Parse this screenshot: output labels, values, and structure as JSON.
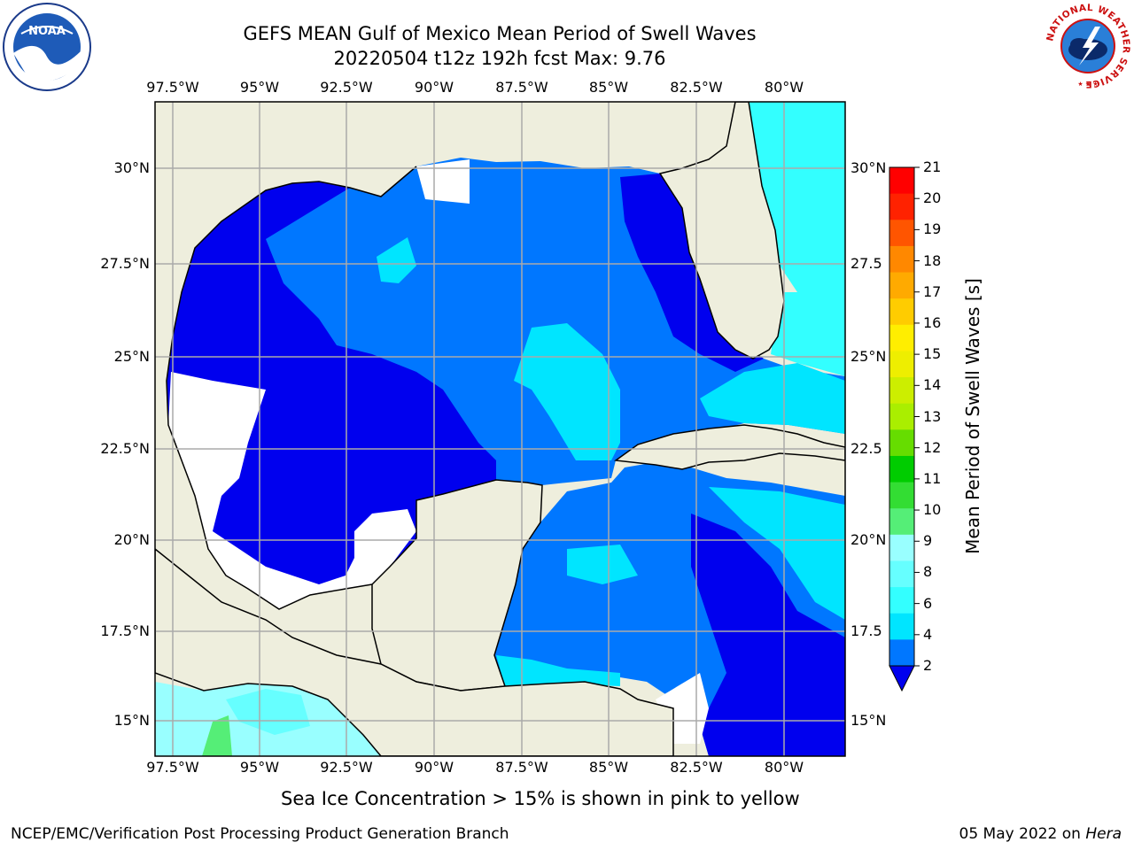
{
  "title": {
    "line1": "GEFS MEAN Gulf of Mexico Mean Period of Swell Waves",
    "line2": "20220504 t12z 192h fcst   Max: 9.76"
  },
  "logos": {
    "noaa": "NOAA",
    "nws_ring": "NATIONAL WEATHER SERVICE"
  },
  "axes": {
    "lon_labels": [
      "97.5°W",
      "95°W",
      "92.5°W",
      "90°W",
      "87.5°W",
      "85°W",
      "82.5°W",
      "80°W"
    ],
    "lat_labels_left": [
      "30°N",
      "27.5°N",
      "25°N",
      "22.5°N",
      "20°N",
      "17.5°N",
      "15°N"
    ],
    "lat_labels_right": [
      "30°N",
      "27.5",
      "25°N",
      "22.5",
      "20°N",
      "17.5",
      "15°N"
    ]
  },
  "colorbar": {
    "label": "Mean Period of Swell Waves [s]",
    "ticks": [
      "2",
      "4",
      "6",
      "8",
      "9",
      "10",
      "11",
      "12",
      "13",
      "14",
      "15",
      "16",
      "17",
      "18",
      "19",
      "20",
      "21"
    ],
    "colors": [
      "#0077ff",
      "#00e5ff",
      "#33ffff",
      "#66ffff",
      "#99ffff",
      "#55ee77",
      "#33dd33",
      "#00cc00",
      "#66dd00",
      "#aaee00",
      "#ccee00",
      "#eeee00",
      "#ffee00",
      "#ffcc00",
      "#ffaa00",
      "#ff8800",
      "#ff5500",
      "#ff2200",
      "#ff0000"
    ],
    "extend_color": "#0000ee"
  },
  "caption": "Sea Ice Concentration > 15% is shown in pink to yellow",
  "footer": {
    "left": "NCEP/EMC/Verification Post Processing Product Generation Branch",
    "date": "05 May 2022 on ",
    "machine": "Hera"
  }
}
